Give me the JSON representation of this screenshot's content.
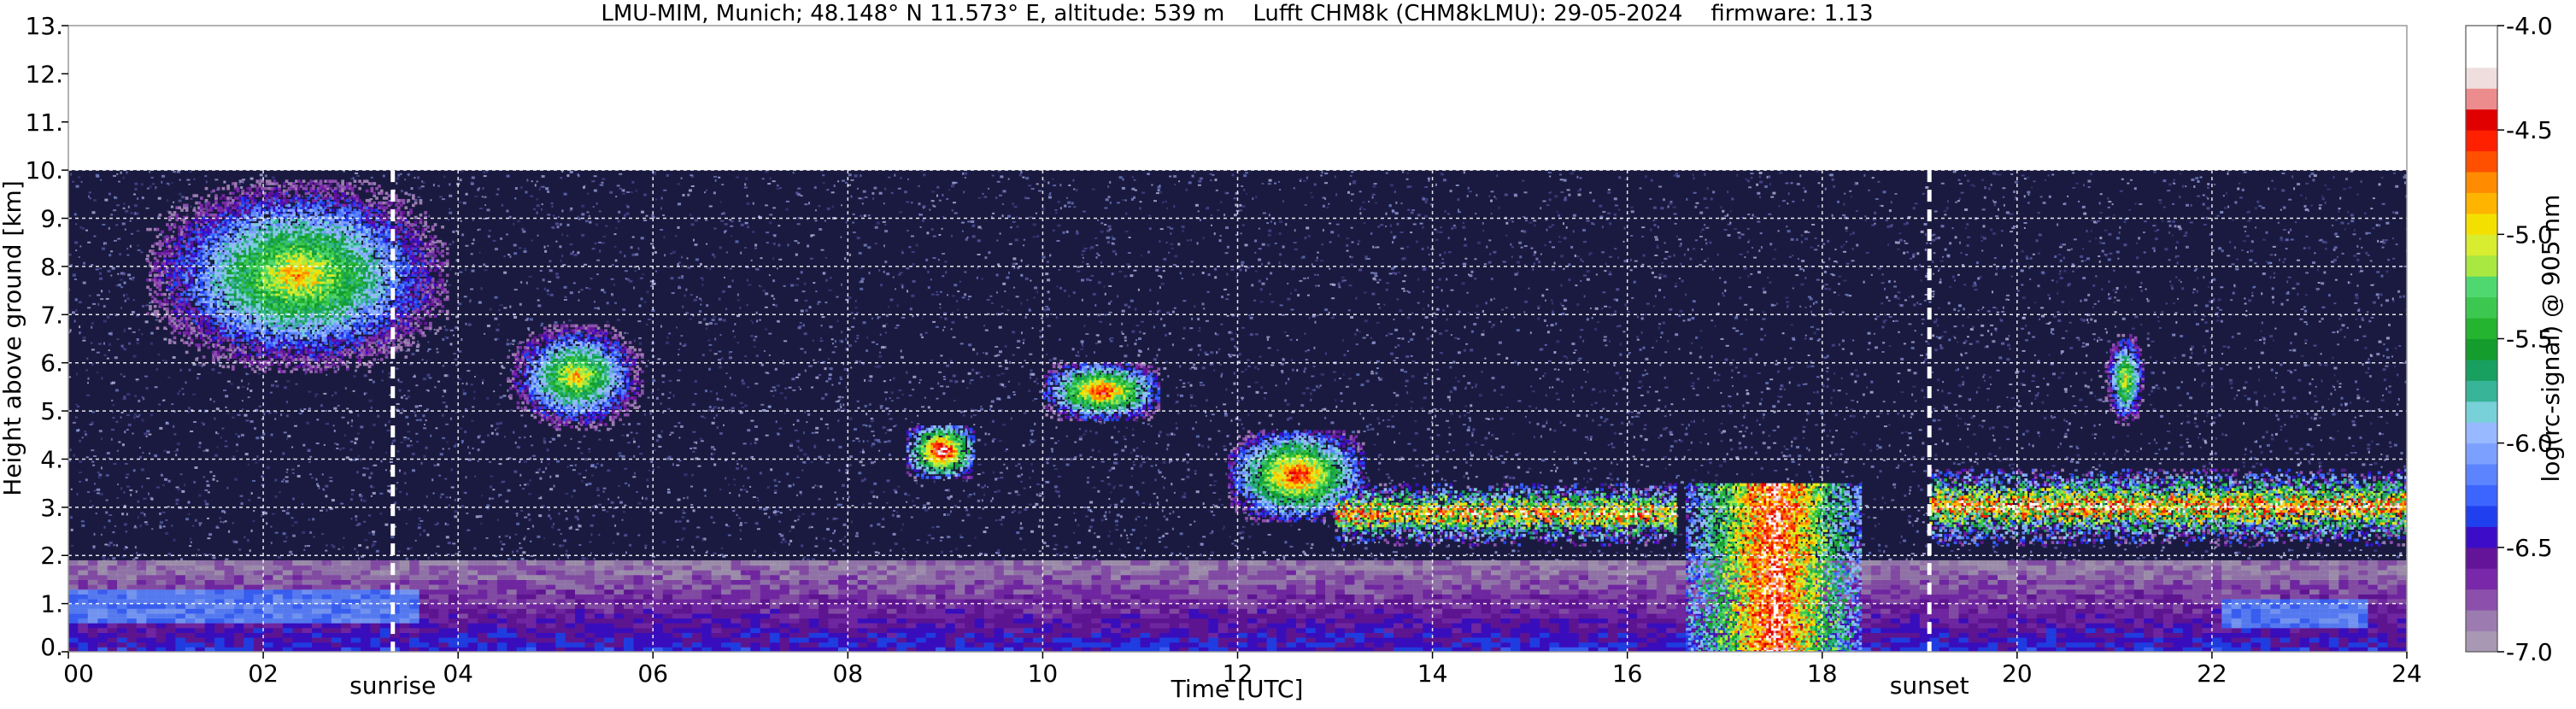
{
  "chart_data": {
    "type": "heatmap",
    "title": "LMU-MIM, Munich; 48.148° N 11.573° E, altitude: 539 m    Lufft CHM8k (CHM8kLMU): 29-05-2024    firmware: 1.13",
    "xlabel": "Time [UTC]",
    "ylabel": "Height above ground [km]",
    "xlim": [
      0,
      24
    ],
    "ylim": [
      0,
      13
    ],
    "xticks": [
      "00",
      "02",
      "04",
      "06",
      "08",
      "10",
      "12",
      "14",
      "16",
      "18",
      "20",
      "22",
      "24"
    ],
    "yticks": [
      "0.",
      "1.",
      "2.",
      "3.",
      "4.",
      "5.",
      "6.",
      "7.",
      "8.",
      "9.",
      "10.",
      "11.",
      "12.",
      "13."
    ],
    "grid": true,
    "data_max_height_km": 10,
    "colorbar": {
      "label": "log(rc-signal) @ 905 nm",
      "ticks": [
        "-4.0",
        "-4.5",
        "-5.0",
        "-5.5",
        "-6.0",
        "-6.5",
        "-7.0"
      ],
      "range": [
        -7.0,
        -4.0
      ],
      "colors": [
        "#a898b4",
        "#9c7cb0",
        "#8c50ac",
        "#7828a8",
        "#641498",
        "#3c0cc8",
        "#2040f0",
        "#3c64ff",
        "#5c84ff",
        "#7ca0ff",
        "#98b8ff",
        "#78d0d8",
        "#38b498",
        "#18a060",
        "#149c2c",
        "#24b430",
        "#3cc850",
        "#50d870",
        "#a8e840",
        "#d8ec30",
        "#f4e000",
        "#ffb400",
        "#ff8c00",
        "#ff5000",
        "#ff2000",
        "#e00000",
        "#ec8c8c",
        "#f0dede",
        "#ffffff",
        "#ffffff"
      ]
    },
    "markers": [
      {
        "label": "sunrise",
        "time": 3.33
      },
      {
        "label": "sunset",
        "time": 19.1
      }
    ],
    "features": [
      {
        "type": "cirrus",
        "t0": 0.8,
        "t1": 3.9,
        "h0": 5.8,
        "h1": 9.8,
        "peak_log_signal": -4.8
      },
      {
        "type": "cirrus",
        "t0": 4.5,
        "t1": 5.9,
        "h0": 4.6,
        "h1": 6.8,
        "peak_log_signal": -4.8
      },
      {
        "type": "cloud",
        "t0": 8.6,
        "t1": 9.3,
        "h0": 3.6,
        "h1": 4.7,
        "peak_log_signal": -4.1
      },
      {
        "type": "cloud",
        "t0": 10.0,
        "t1": 11.2,
        "h0": 4.8,
        "h1": 6.0,
        "peak_log_signal": -4.4
      },
      {
        "type": "cloud",
        "t0": 11.9,
        "t1": 13.3,
        "h0": 2.7,
        "h1": 4.6,
        "peak_log_signal": -4.4
      },
      {
        "type": "cloud_base",
        "t0": 13.0,
        "t1": 16.5,
        "h0": 2.2,
        "h1": 3.5,
        "peak_log_signal": -4.0
      },
      {
        "type": "convective",
        "t0": 16.6,
        "t1": 18.4,
        "h0": 0.0,
        "h1": 3.5,
        "peak_log_signal": -4.0
      },
      {
        "type": "cloud_base",
        "t0": 19.1,
        "t1": 24.0,
        "h0": 2.2,
        "h1": 3.8,
        "peak_log_signal": -4.0
      },
      {
        "type": "cirrus",
        "t0": 20.9,
        "t1": 21.3,
        "h0": 4.7,
        "h1": 6.6,
        "peak_log_signal": -4.8
      },
      {
        "type": "boundary_layer",
        "t0": 0.0,
        "t1": 24.0,
        "h0": 0.0,
        "h1": 1.9,
        "peak_log_signal": -6.4
      }
    ]
  }
}
